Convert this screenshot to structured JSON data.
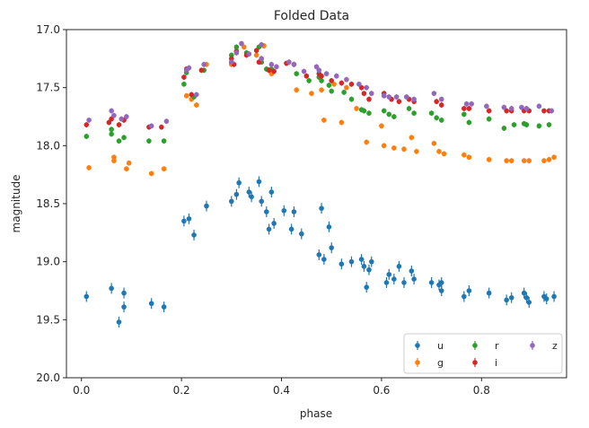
{
  "chart_data": {
    "type": "scatter",
    "title": "Folded Data",
    "xlabel": "phase",
    "ylabel": "magnitude",
    "xlim": [
      -0.03,
      0.97
    ],
    "ylim": [
      17.0,
      20.0
    ],
    "y_inverted": true,
    "x_ticks": [
      0.0,
      0.2,
      0.4,
      0.6,
      0.8
    ],
    "x_tick_labels": [
      "0.0",
      "0.2",
      "0.4",
      "0.6",
      "0.8"
    ],
    "y_ticks": [
      17.0,
      17.5,
      18.0,
      18.5,
      19.0,
      19.5,
      20.0
    ],
    "y_tick_labels": [
      "17.0",
      "17.5",
      "18.0",
      "18.5",
      "19.0",
      "19.5",
      "20.0"
    ],
    "grid": false,
    "error_bars": true,
    "legend": {
      "placement": "bottom-right",
      "columns": 3
    },
    "series": [
      {
        "name": "u",
        "color": "#1f77b4",
        "points": [
          [
            0.01,
            19.3
          ],
          [
            0.06,
            19.23
          ],
          [
            0.075,
            19.52
          ],
          [
            0.085,
            19.39
          ],
          [
            0.085,
            19.27
          ],
          [
            0.14,
            19.36
          ],
          [
            0.165,
            19.39
          ],
          [
            0.205,
            18.65
          ],
          [
            0.215,
            18.63
          ],
          [
            0.225,
            18.77
          ],
          [
            0.25,
            18.52
          ],
          [
            0.3,
            18.48
          ],
          [
            0.31,
            18.42
          ],
          [
            0.315,
            18.32
          ],
          [
            0.335,
            18.4
          ],
          [
            0.34,
            18.44
          ],
          [
            0.355,
            18.31
          ],
          [
            0.36,
            18.48
          ],
          [
            0.37,
            18.57
          ],
          [
            0.375,
            18.72
          ],
          [
            0.38,
            18.4
          ],
          [
            0.385,
            18.67
          ],
          [
            0.405,
            18.56
          ],
          [
            0.42,
            18.72
          ],
          [
            0.425,
            18.57
          ],
          [
            0.44,
            18.76
          ],
          [
            0.475,
            18.94
          ],
          [
            0.48,
            18.54
          ],
          [
            0.485,
            18.98
          ],
          [
            0.495,
            18.7
          ],
          [
            0.5,
            18.88
          ],
          [
            0.52,
            19.02
          ],
          [
            0.54,
            19.0
          ],
          [
            0.56,
            18.98
          ],
          [
            0.565,
            19.04
          ],
          [
            0.57,
            19.22
          ],
          [
            0.575,
            19.07
          ],
          [
            0.58,
            19.0
          ],
          [
            0.61,
            19.18
          ],
          [
            0.615,
            19.11
          ],
          [
            0.625,
            19.15
          ],
          [
            0.635,
            19.04
          ],
          [
            0.645,
            19.18
          ],
          [
            0.66,
            19.08
          ],
          [
            0.665,
            19.15
          ],
          [
            0.7,
            19.18
          ],
          [
            0.715,
            19.2
          ],
          [
            0.72,
            19.25
          ],
          [
            0.72,
            19.18
          ],
          [
            0.765,
            19.3
          ],
          [
            0.775,
            19.25
          ],
          [
            0.815,
            19.27
          ],
          [
            0.85,
            19.33
          ],
          [
            0.86,
            19.31
          ],
          [
            0.885,
            19.27
          ],
          [
            0.89,
            19.31
          ],
          [
            0.895,
            19.35
          ],
          [
            0.925,
            19.3
          ],
          [
            0.93,
            19.32
          ],
          [
            0.945,
            19.3
          ]
        ]
      },
      {
        "name": "g",
        "color": "#ff7f0e",
        "points": [
          [
            0.015,
            18.19
          ],
          [
            0.065,
            18.1
          ],
          [
            0.065,
            18.13
          ],
          [
            0.09,
            18.2
          ],
          [
            0.095,
            18.15
          ],
          [
            0.14,
            18.24
          ],
          [
            0.165,
            18.2
          ],
          [
            0.21,
            17.57
          ],
          [
            0.22,
            17.6
          ],
          [
            0.23,
            17.65
          ],
          [
            0.25,
            17.3
          ],
          [
            0.3,
            17.3
          ],
          [
            0.31,
            17.18
          ],
          [
            0.325,
            17.15
          ],
          [
            0.35,
            17.22
          ],
          [
            0.36,
            17.25
          ],
          [
            0.365,
            17.14
          ],
          [
            0.375,
            17.35
          ],
          [
            0.38,
            17.38
          ],
          [
            0.43,
            17.52
          ],
          [
            0.46,
            17.55
          ],
          [
            0.48,
            17.52
          ],
          [
            0.485,
            17.78
          ],
          [
            0.505,
            17.47
          ],
          [
            0.52,
            17.8
          ],
          [
            0.53,
            17.5
          ],
          [
            0.55,
            17.68
          ],
          [
            0.57,
            17.97
          ],
          [
            0.6,
            17.83
          ],
          [
            0.605,
            18.0
          ],
          [
            0.625,
            18.02
          ],
          [
            0.645,
            18.03
          ],
          [
            0.66,
            17.93
          ],
          [
            0.67,
            18.05
          ],
          [
            0.705,
            17.98
          ],
          [
            0.715,
            18.05
          ],
          [
            0.725,
            18.07
          ],
          [
            0.765,
            18.08
          ],
          [
            0.775,
            18.1
          ],
          [
            0.815,
            18.12
          ],
          [
            0.85,
            18.13
          ],
          [
            0.86,
            18.13
          ],
          [
            0.885,
            18.13
          ],
          [
            0.895,
            18.13
          ],
          [
            0.925,
            18.13
          ],
          [
            0.935,
            18.12
          ],
          [
            0.945,
            18.1
          ]
        ]
      },
      {
        "name": "r",
        "color": "#2ca02c",
        "points": [
          [
            0.01,
            17.92
          ],
          [
            0.06,
            17.86
          ],
          [
            0.06,
            17.9
          ],
          [
            0.075,
            17.96
          ],
          [
            0.085,
            17.93
          ],
          [
            0.135,
            17.96
          ],
          [
            0.165,
            17.96
          ],
          [
            0.205,
            17.47
          ],
          [
            0.21,
            17.37
          ],
          [
            0.225,
            17.58
          ],
          [
            0.245,
            17.35
          ],
          [
            0.3,
            17.22
          ],
          [
            0.3,
            17.28
          ],
          [
            0.31,
            17.15
          ],
          [
            0.33,
            17.2
          ],
          [
            0.355,
            17.15
          ],
          [
            0.36,
            17.28
          ],
          [
            0.37,
            17.34
          ],
          [
            0.38,
            17.34
          ],
          [
            0.41,
            17.29
          ],
          [
            0.43,
            17.38
          ],
          [
            0.455,
            17.44
          ],
          [
            0.475,
            17.41
          ],
          [
            0.48,
            17.44
          ],
          [
            0.495,
            17.48
          ],
          [
            0.5,
            17.53
          ],
          [
            0.525,
            17.54
          ],
          [
            0.54,
            17.6
          ],
          [
            0.56,
            17.69
          ],
          [
            0.565,
            17.7
          ],
          [
            0.575,
            17.72
          ],
          [
            0.605,
            17.7
          ],
          [
            0.615,
            17.73
          ],
          [
            0.625,
            17.75
          ],
          [
            0.655,
            17.68
          ],
          [
            0.665,
            17.72
          ],
          [
            0.7,
            17.72
          ],
          [
            0.71,
            17.76
          ],
          [
            0.72,
            17.78
          ],
          [
            0.765,
            17.73
          ],
          [
            0.775,
            17.8
          ],
          [
            0.815,
            17.77
          ],
          [
            0.845,
            17.85
          ],
          [
            0.865,
            17.82
          ],
          [
            0.885,
            17.81
          ],
          [
            0.89,
            17.82
          ],
          [
            0.915,
            17.83
          ],
          [
            0.935,
            17.82
          ]
        ]
      },
      {
        "name": "i",
        "color": "#d62728",
        "points": [
          [
            0.01,
            17.82
          ],
          [
            0.055,
            17.8
          ],
          [
            0.06,
            17.77
          ],
          [
            0.075,
            17.82
          ],
          [
            0.085,
            17.78
          ],
          [
            0.135,
            17.84
          ],
          [
            0.16,
            17.84
          ],
          [
            0.205,
            17.41
          ],
          [
            0.21,
            17.34
          ],
          [
            0.22,
            17.56
          ],
          [
            0.24,
            17.35
          ],
          [
            0.3,
            17.25
          ],
          [
            0.305,
            17.3
          ],
          [
            0.31,
            17.19
          ],
          [
            0.33,
            17.22
          ],
          [
            0.35,
            17.18
          ],
          [
            0.355,
            17.28
          ],
          [
            0.375,
            17.35
          ],
          [
            0.385,
            17.36
          ],
          [
            0.41,
            17.29
          ],
          [
            0.425,
            17.3
          ],
          [
            0.45,
            17.4
          ],
          [
            0.475,
            17.38
          ],
          [
            0.48,
            17.4
          ],
          [
            0.5,
            17.44
          ],
          [
            0.52,
            17.46
          ],
          [
            0.54,
            17.47
          ],
          [
            0.56,
            17.5
          ],
          [
            0.565,
            17.55
          ],
          [
            0.575,
            17.6
          ],
          [
            0.605,
            17.55
          ],
          [
            0.62,
            17.6
          ],
          [
            0.635,
            17.62
          ],
          [
            0.655,
            17.6
          ],
          [
            0.665,
            17.62
          ],
          [
            0.71,
            17.62
          ],
          [
            0.72,
            17.65
          ],
          [
            0.765,
            17.68
          ],
          [
            0.775,
            17.68
          ],
          [
            0.815,
            17.7
          ],
          [
            0.85,
            17.7
          ],
          [
            0.86,
            17.7
          ],
          [
            0.885,
            17.7
          ],
          [
            0.895,
            17.7
          ],
          [
            0.925,
            17.7
          ],
          [
            0.935,
            17.7
          ]
        ]
      },
      {
        "name": "z",
        "color": "#9467bd",
        "points": [
          [
            0.015,
            17.78
          ],
          [
            0.06,
            17.7
          ],
          [
            0.065,
            17.74
          ],
          [
            0.08,
            17.77
          ],
          [
            0.09,
            17.75
          ],
          [
            0.14,
            17.83
          ],
          [
            0.17,
            17.79
          ],
          [
            0.21,
            17.35
          ],
          [
            0.215,
            17.33
          ],
          [
            0.23,
            17.56
          ],
          [
            0.245,
            17.3
          ],
          [
            0.3,
            17.28
          ],
          [
            0.31,
            17.2
          ],
          [
            0.32,
            17.12
          ],
          [
            0.335,
            17.21
          ],
          [
            0.36,
            17.13
          ],
          [
            0.36,
            17.25
          ],
          [
            0.38,
            17.3
          ],
          [
            0.39,
            17.32
          ],
          [
            0.415,
            17.28
          ],
          [
            0.425,
            17.3
          ],
          [
            0.445,
            17.36
          ],
          [
            0.47,
            17.32
          ],
          [
            0.475,
            17.35
          ],
          [
            0.49,
            17.38
          ],
          [
            0.51,
            17.4
          ],
          [
            0.53,
            17.43
          ],
          [
            0.555,
            17.47
          ],
          [
            0.57,
            17.5
          ],
          [
            0.58,
            17.55
          ],
          [
            0.605,
            17.57
          ],
          [
            0.615,
            17.58
          ],
          [
            0.63,
            17.58
          ],
          [
            0.65,
            17.58
          ],
          [
            0.665,
            17.6
          ],
          [
            0.705,
            17.55
          ],
          [
            0.72,
            17.6
          ],
          [
            0.77,
            17.64
          ],
          [
            0.78,
            17.64
          ],
          [
            0.81,
            17.66
          ],
          [
            0.845,
            17.67
          ],
          [
            0.86,
            17.68
          ],
          [
            0.88,
            17.67
          ],
          [
            0.89,
            17.68
          ],
          [
            0.915,
            17.66
          ],
          [
            0.94,
            17.7
          ]
        ]
      }
    ]
  }
}
